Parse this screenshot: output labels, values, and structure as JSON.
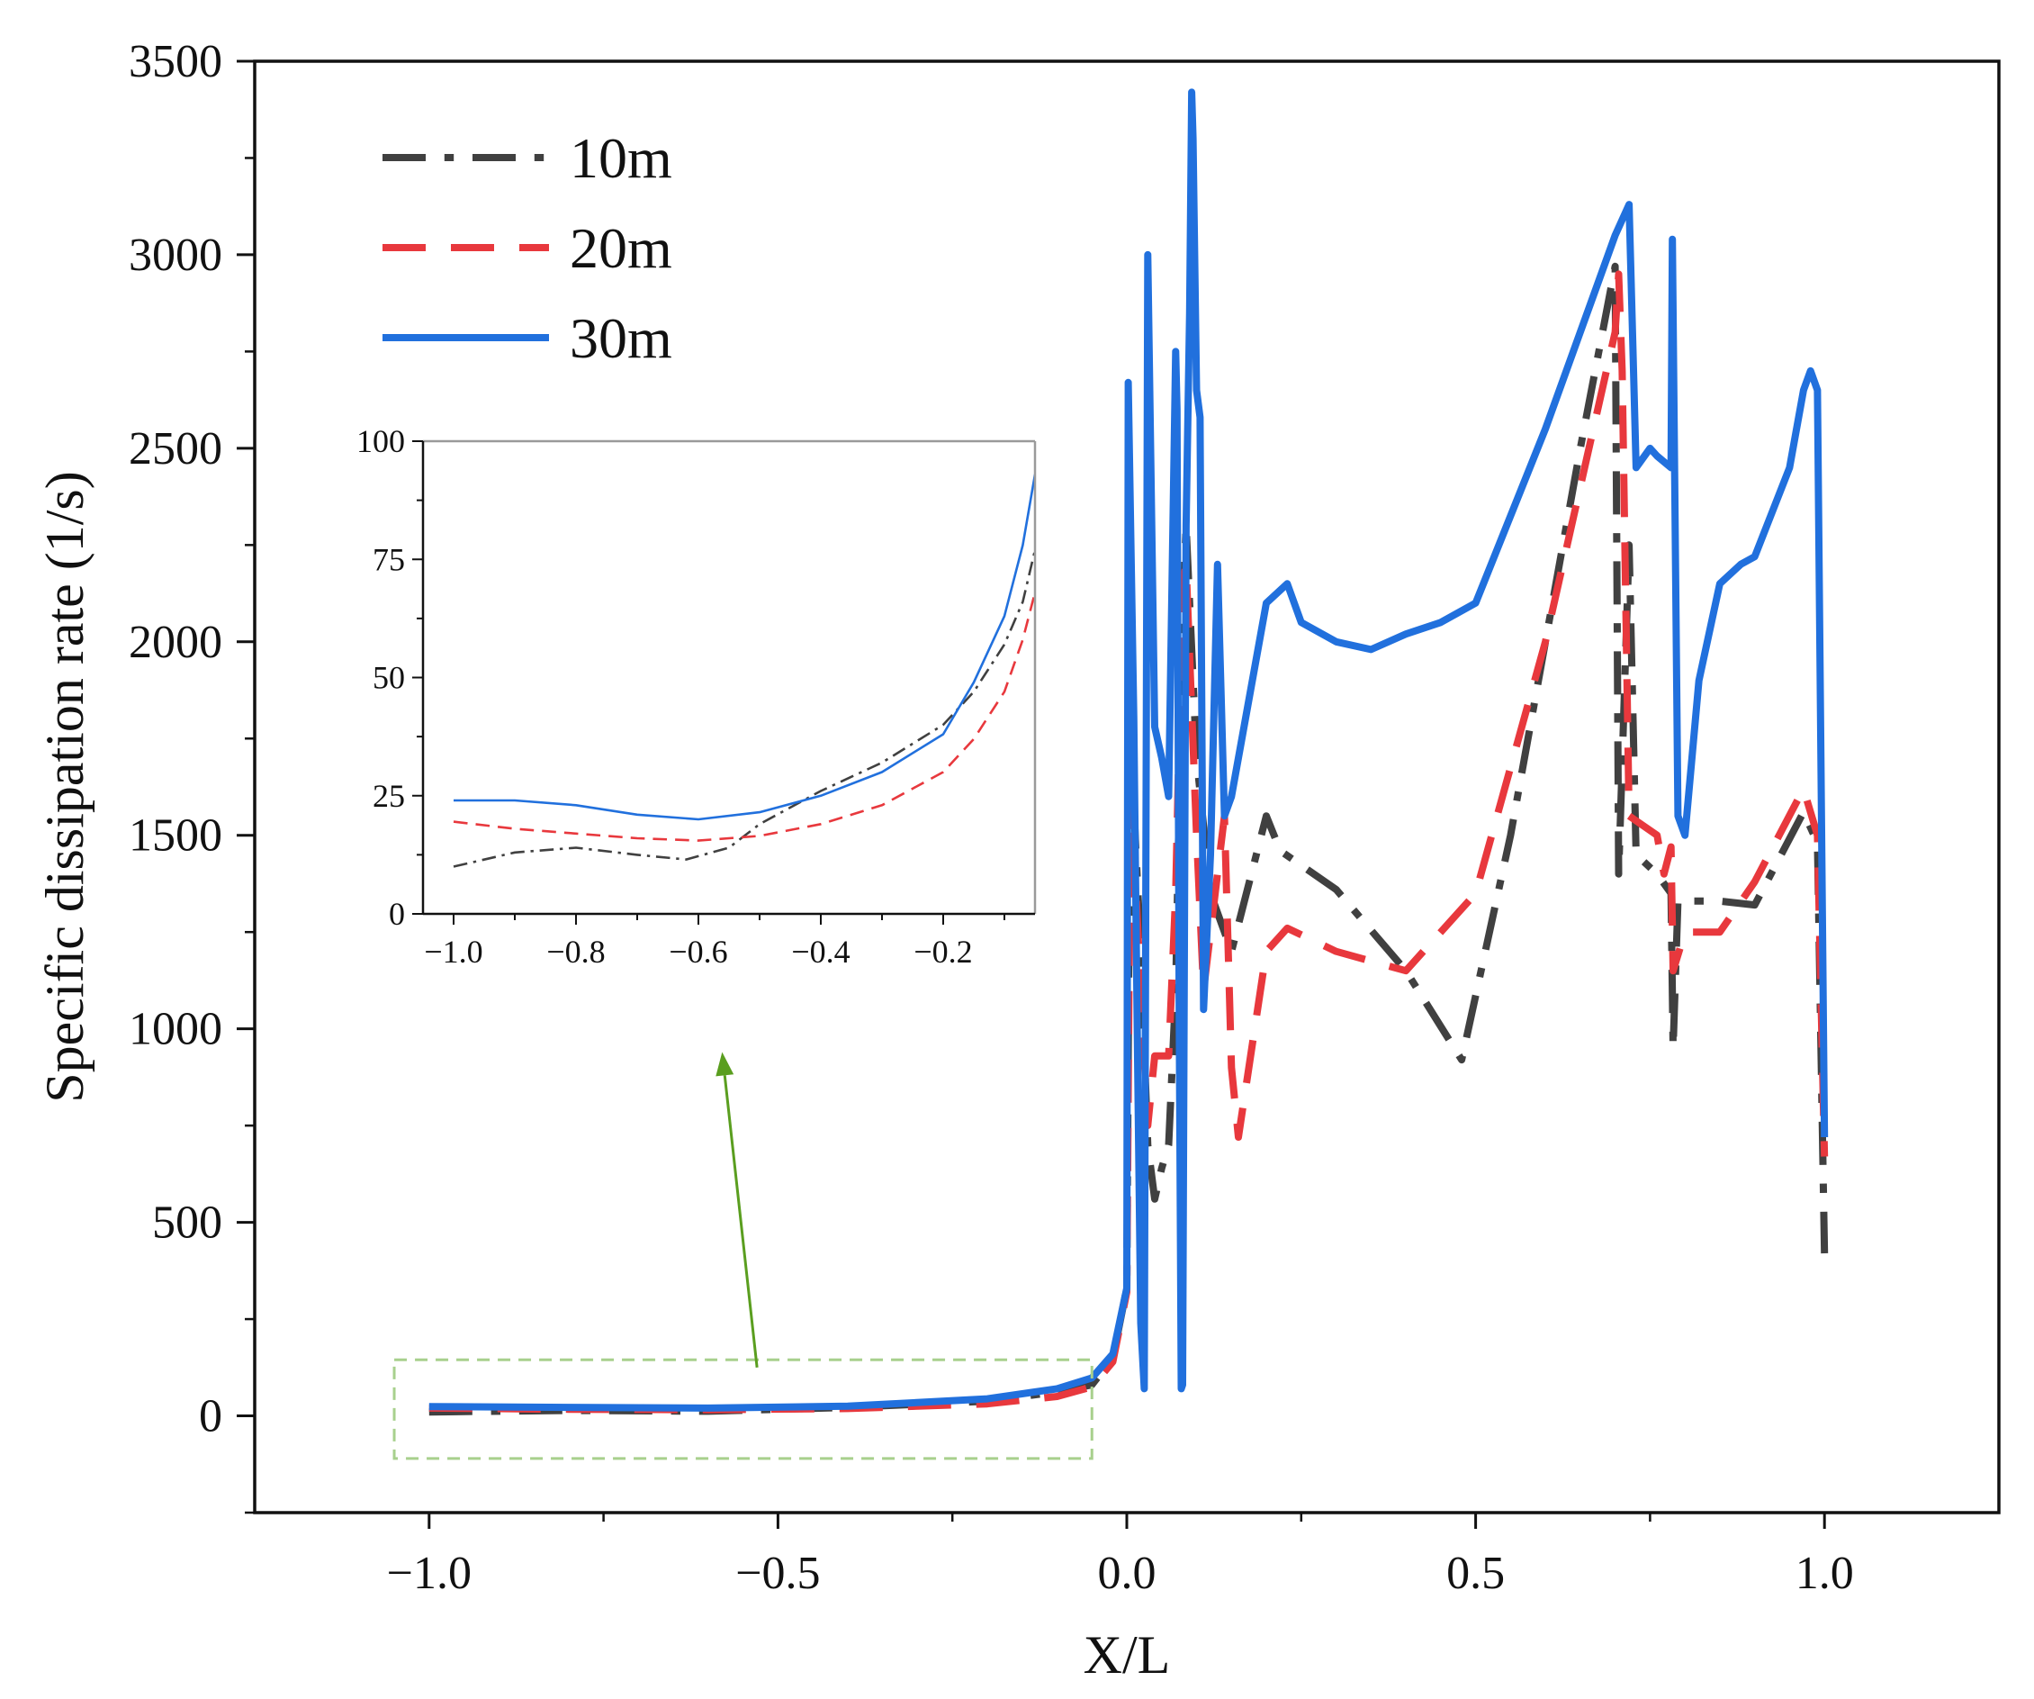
{
  "chart_data": [
    {
      "type": "line",
      "title": "",
      "xlabel": "X/L",
      "ylabel": "Specific dissipation rate (1/s)",
      "xlim": [
        -1.25,
        1.25
      ],
      "ylim": [
        -250,
        3500
      ],
      "x_ticks": [
        -1.0,
        -0.5,
        0.0,
        0.5,
        1.0
      ],
      "x_tick_labels": [
        "−1.0",
        "−0.5",
        "0.0",
        "0.5",
        "1.0"
      ],
      "y_ticks": [
        0,
        500,
        1000,
        1500,
        2000,
        2500,
        3000,
        3500
      ],
      "y_tick_labels": [
        "0",
        "500",
        "1000",
        "1500",
        "2000",
        "2500",
        "3000",
        "3500"
      ],
      "legend_position": "top-left",
      "series": [
        {
          "name": "10m",
          "color": "#404040",
          "dash": "dashdot",
          "points": [
            [
              -1.0,
              10
            ],
            [
              -0.8,
              14
            ],
            [
              -0.6,
              12
            ],
            [
              -0.4,
              22
            ],
            [
              -0.2,
              38
            ],
            [
              -0.1,
              62
            ],
            [
              -0.05,
              80
            ],
            [
              -0.02,
              150
            ],
            [
              0.0,
              330
            ],
            [
              0.005,
              1820
            ],
            [
              0.012,
              1500
            ],
            [
              0.02,
              1200
            ],
            [
              0.03,
              700
            ],
            [
              0.04,
              560
            ],
            [
              0.05,
              640
            ],
            [
              0.06,
              700
            ],
            [
              0.07,
              1100
            ],
            [
              0.08,
              2050
            ],
            [
              0.085,
              2300
            ],
            [
              0.09,
              2100
            ],
            [
              0.1,
              1700
            ],
            [
              0.12,
              1350
            ],
            [
              0.15,
              1200
            ],
            [
              0.2,
              1550
            ],
            [
              0.22,
              1460
            ],
            [
              0.3,
              1360
            ],
            [
              0.4,
              1150
            ],
            [
              0.48,
              920
            ],
            [
              0.55,
              1500
            ],
            [
              0.65,
              2500
            ],
            [
              0.7,
              2970
            ],
            [
              0.705,
              1400
            ],
            [
              0.72,
              2250
            ],
            [
              0.73,
              1450
            ],
            [
              0.76,
              1400
            ],
            [
              0.78,
              1350
            ],
            [
              0.783,
              950
            ],
            [
              0.79,
              1330
            ],
            [
              0.85,
              1330
            ],
            [
              0.9,
              1320
            ],
            [
              0.97,
              1560
            ],
            [
              0.99,
              1480
            ],
            [
              1.0,
              420
            ]
          ]
        },
        {
          "name": "20m",
          "color": "#e8383d",
          "dash": "dashed",
          "points": [
            [
              -1.0,
              20
            ],
            [
              -0.8,
              17
            ],
            [
              -0.6,
              16
            ],
            [
              -0.4,
              19
            ],
            [
              -0.2,
              31
            ],
            [
              -0.1,
              50
            ],
            [
              -0.05,
              75
            ],
            [
              -0.02,
              140
            ],
            [
              0.0,
              320
            ],
            [
              0.005,
              1600
            ],
            [
              0.012,
              1400
            ],
            [
              0.02,
              1100
            ],
            [
              0.03,
              750
            ],
            [
              0.04,
              930
            ],
            [
              0.06,
              930
            ],
            [
              0.07,
              1350
            ],
            [
              0.08,
              2150
            ],
            [
              0.085,
              2200
            ],
            [
              0.1,
              1500
            ],
            [
              0.11,
              1100
            ],
            [
              0.14,
              1550
            ],
            [
              0.15,
              900
            ],
            [
              0.16,
              720
            ],
            [
              0.2,
              1200
            ],
            [
              0.23,
              1260
            ],
            [
              0.3,
              1200
            ],
            [
              0.4,
              1150
            ],
            [
              0.5,
              1350
            ],
            [
              0.6,
              2000
            ],
            [
              0.7,
              2800
            ],
            [
              0.705,
              2950
            ],
            [
              0.71,
              2700
            ],
            [
              0.72,
              1550
            ],
            [
              0.76,
              1500
            ],
            [
              0.77,
              1400
            ],
            [
              0.78,
              1470
            ],
            [
              0.783,
              1150
            ],
            [
              0.8,
              1250
            ],
            [
              0.85,
              1250
            ],
            [
              0.9,
              1380
            ],
            [
              0.97,
              1620
            ],
            [
              0.99,
              1500
            ],
            [
              1.0,
              670
            ]
          ]
        },
        {
          "name": "30m",
          "color": "#2170dd",
          "dash": "solid",
          "points": [
            [
              -1.0,
              24
            ],
            [
              -0.8,
              22
            ],
            [
              -0.6,
              20
            ],
            [
              -0.4,
              25
            ],
            [
              -0.2,
              44
            ],
            [
              -0.1,
              70
            ],
            [
              -0.05,
              98
            ],
            [
              -0.02,
              160
            ],
            [
              0.0,
              330
            ],
            [
              0.002,
              2670
            ],
            [
              0.01,
              1800
            ],
            [
              0.015,
              1000
            ],
            [
              0.02,
              240
            ],
            [
              0.025,
              70
            ],
            [
              0.03,
              3000
            ],
            [
              0.04,
              1780
            ],
            [
              0.05,
              1700
            ],
            [
              0.06,
              1600
            ],
            [
              0.07,
              2750
            ],
            [
              0.072,
              2600
            ],
            [
              0.075,
              1100
            ],
            [
              0.078,
              70
            ],
            [
              0.08,
              80
            ],
            [
              0.085,
              2300
            ],
            [
              0.09,
              2850
            ],
            [
              0.093,
              3420
            ],
            [
              0.095,
              3300
            ],
            [
              0.1,
              2650
            ],
            [
              0.105,
              2580
            ],
            [
              0.11,
              1050
            ],
            [
              0.12,
              1450
            ],
            [
              0.13,
              2200
            ],
            [
              0.14,
              1550
            ],
            [
              0.15,
              1600
            ],
            [
              0.2,
              2100
            ],
            [
              0.23,
              2150
            ],
            [
              0.25,
              2050
            ],
            [
              0.3,
              2000
            ],
            [
              0.35,
              1980
            ],
            [
              0.4,
              2020
            ],
            [
              0.45,
              2050
            ],
            [
              0.5,
              2100
            ],
            [
              0.6,
              2550
            ],
            [
              0.7,
              3050
            ],
            [
              0.72,
              3130
            ],
            [
              0.73,
              2450
            ],
            [
              0.75,
              2500
            ],
            [
              0.76,
              2480
            ],
            [
              0.78,
              2450
            ],
            [
              0.782,
              3040
            ],
            [
              0.79,
              1550
            ],
            [
              0.8,
              1500
            ],
            [
              0.82,
              1900
            ],
            [
              0.85,
              2150
            ],
            [
              0.88,
              2200
            ],
            [
              0.9,
              2220
            ],
            [
              0.95,
              2450
            ],
            [
              0.97,
              2650
            ],
            [
              0.98,
              2700
            ],
            [
              0.99,
              2650
            ],
            [
              1.0,
              720
            ]
          ]
        }
      ],
      "annotations": [
        {
          "type": "dashed-box",
          "color": "#a8d08d",
          "x_range": [
            -1.05,
            -0.05
          ],
          "y_range": [
            -110,
            145
          ]
        },
        {
          "type": "arrow",
          "color": "#5a9e1f",
          "from": [
            -0.53,
            125
          ],
          "to": [
            -0.58,
            940
          ]
        }
      ]
    },
    {
      "type": "line",
      "title": "",
      "xlabel": "",
      "ylabel": "",
      "xlim": [
        -1.05,
        -0.05
      ],
      "ylim": [
        0,
        100
      ],
      "x_ticks": [
        -1.0,
        -0.8,
        -0.6,
        -0.4,
        -0.2
      ],
      "x_tick_labels": [
        "−1.0",
        "−0.8",
        "−0.6",
        "−0.4",
        "−0.2"
      ],
      "y_ticks": [
        0,
        25,
        50,
        75,
        100
      ],
      "y_tick_labels": [
        "0",
        "25",
        "50",
        "75",
        "100"
      ],
      "series": [
        {
          "name": "10m",
          "color": "#404040",
          "dash": "dashdot",
          "points": [
            [
              -1.0,
              10
            ],
            [
              -0.9,
              13
            ],
            [
              -0.8,
              14
            ],
            [
              -0.7,
              12.5
            ],
            [
              -0.62,
              11.5
            ],
            [
              -0.55,
              14
            ],
            [
              -0.5,
              19
            ],
            [
              -0.4,
              26
            ],
            [
              -0.3,
              32
            ],
            [
              -0.2,
              40
            ],
            [
              -0.15,
              47
            ],
            [
              -0.1,
              57
            ],
            [
              -0.07,
              66
            ],
            [
              -0.05,
              77
            ]
          ]
        },
        {
          "name": "20m",
          "color": "#e8383d",
          "dash": "dashed",
          "points": [
            [
              -1.0,
              19.5
            ],
            [
              -0.9,
              18
            ],
            [
              -0.8,
              17
            ],
            [
              -0.7,
              16
            ],
            [
              -0.6,
              15.5
            ],
            [
              -0.5,
              16.5
            ],
            [
              -0.4,
              19
            ],
            [
              -0.3,
              23
            ],
            [
              -0.2,
              30
            ],
            [
              -0.15,
              37
            ],
            [
              -0.1,
              47
            ],
            [
              -0.07,
              58
            ],
            [
              -0.05,
              68
            ]
          ]
        },
        {
          "name": "30m",
          "color": "#2170dd",
          "dash": "solid",
          "points": [
            [
              -1.0,
              24
            ],
            [
              -0.9,
              24
            ],
            [
              -0.8,
              23
            ],
            [
              -0.7,
              21
            ],
            [
              -0.6,
              20
            ],
            [
              -0.5,
              21.5
            ],
            [
              -0.4,
              25
            ],
            [
              -0.3,
              30
            ],
            [
              -0.2,
              38
            ],
            [
              -0.15,
              49
            ],
            [
              -0.1,
              63
            ],
            [
              -0.07,
              78
            ],
            [
              -0.05,
              93
            ]
          ]
        }
      ]
    }
  ]
}
